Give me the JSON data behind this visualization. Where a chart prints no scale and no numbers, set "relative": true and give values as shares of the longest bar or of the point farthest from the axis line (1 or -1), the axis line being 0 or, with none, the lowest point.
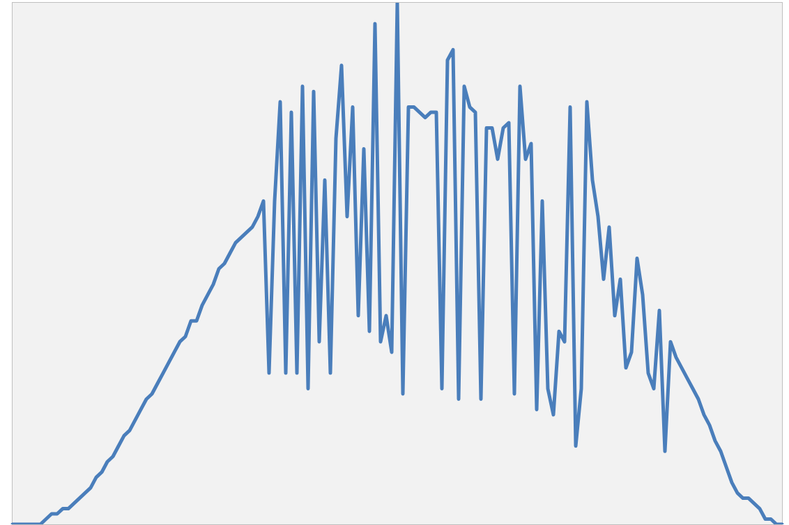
{
  "chart_data": {
    "type": "line",
    "relative": true,
    "color": "#4a7ebb",
    "categories": [
      null,
      null,
      null,
      null,
      null,
      null,
      null,
      null,
      null,
      null,
      null,
      null,
      null,
      null,
      null,
      null,
      null,
      null,
      null,
      null,
      null,
      null,
      null,
      null,
      null,
      null,
      null,
      null,
      null,
      null,
      null,
      null,
      null,
      null,
      null,
      null,
      null,
      null,
      null,
      null,
      null,
      null,
      null,
      null,
      null,
      null,
      null,
      null,
      null,
      null,
      null,
      null,
      null,
      null,
      null,
      null,
      null,
      null,
      null,
      null,
      null,
      null,
      null,
      null,
      null,
      null,
      null,
      null,
      null,
      null,
      null,
      null,
      null,
      null,
      null,
      null,
      null,
      null,
      null,
      null,
      null,
      null,
      null,
      null,
      null,
      null,
      null,
      null,
      null,
      null,
      null,
      null,
      null,
      null,
      null,
      null,
      null,
      null,
      null,
      null,
      null,
      null,
      null,
      null,
      null,
      null,
      null,
      null,
      null,
      null,
      null,
      null,
      null,
      null,
      null,
      null,
      null,
      null,
      null,
      null,
      null,
      null,
      null,
      null,
      null,
      null,
      null,
      null,
      null,
      null,
      null,
      null,
      null,
      null,
      null,
      null,
      null,
      null,
      null
    ],
    "values": [
      0,
      0,
      0,
      0,
      0,
      0,
      0.01,
      0.02,
      0.02,
      0.03,
      0.03,
      0.04,
      0.05,
      0.06,
      0.07,
      0.09,
      0.1,
      0.12,
      0.13,
      0.15,
      0.17,
      0.18,
      0.2,
      0.22,
      0.24,
      0.25,
      0.27,
      0.29,
      0.31,
      0.33,
      0.35,
      0.36,
      0.39,
      0.39,
      0.42,
      0.44,
      0.46,
      0.49,
      0.5,
      0.52,
      0.54,
      0.55,
      0.56,
      0.57,
      0.59,
      0.62,
      0.29,
      0.62,
      0.81,
      0.29,
      0.79,
      0.29,
      0.84,
      0.26,
      0.83,
      0.35,
      0.66,
      0.29,
      0.74,
      0.88,
      0.59,
      0.8,
      0.4,
      0.72,
      0.37,
      0.96,
      0.35,
      0.4,
      0.33,
      1,
      0.25,
      0.8,
      0.8,
      0.79,
      0.78,
      0.79,
      0.79,
      0.26,
      0.89,
      0.91,
      0.24,
      0.84,
      0.8,
      0.79,
      0.24,
      0.76,
      0.76,
      0.7,
      0.76,
      0.77,
      0.25,
      0.84,
      0.7,
      0.73,
      0.22,
      0.62,
      0.26,
      0.21,
      0.37,
      0.35,
      0.8,
      0.15,
      0.26,
      0.81,
      0.66,
      0.59,
      0.47,
      0.57,
      0.4,
      0.47,
      0.3,
      0.33,
      0.51,
      0.44,
      0.29,
      0.26,
      0.41,
      0.14,
      0.35,
      0.32,
      0.3,
      0.28,
      0.26,
      0.24,
      0.21,
      0.19,
      0.16,
      0.14,
      0.11,
      0.08,
      0.06,
      0.05,
      0.05,
      0.04,
      0.03,
      0.01,
      0.01,
      0,
      0
    ]
  }
}
